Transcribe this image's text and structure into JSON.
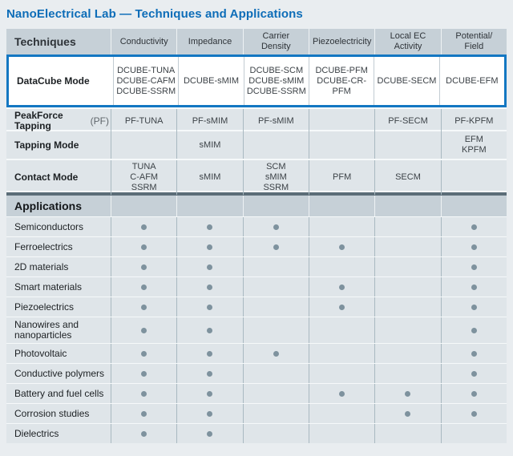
{
  "page": {
    "title": "NanoElectrical Lab — Techniques and Applications"
  },
  "colors": {
    "accent_blue": "#0d6db8",
    "highlight_border": "#1377c2",
    "header_bg": "#c6d0d7",
    "row_bg": "#dfe5e9",
    "dark_divider": "#5c6d78",
    "dot_color": "#7e929e",
    "page_bg": "#e9edf0"
  },
  "table": {
    "techniques_header": "Techniques",
    "applications_header": "Applications",
    "columns": [
      "Conductivity",
      "Impedance",
      "Carrier\nDensity",
      "Piezoelectricity",
      "Local EC\nActivity",
      "Potential/\nField"
    ],
    "technique_rows": [
      {
        "label": "DataCube Mode",
        "suffix": "",
        "highlighted": true,
        "cells": [
          "DCUBE-TUNA\nDCUBE-CAFM\nDCUBE-SSRM",
          "DCUBE-sMIM",
          "DCUBE-SCM\nDCUBE-sMIM\nDCUBE-SSRM",
          "DCUBE-PFM\nDCUBE-CR-PFM",
          "DCUBE-SECM",
          "DCUBE-EFM"
        ]
      },
      {
        "label": "PeakForce Tapping",
        "suffix": "(PF)",
        "highlighted": false,
        "cells": [
          "PF-TUNA",
          "PF-sMIM",
          "PF-sMIM",
          "",
          "PF-SECM",
          "PF-KPFM"
        ]
      },
      {
        "label": "Tapping Mode",
        "suffix": "",
        "highlighted": false,
        "cells": [
          "",
          "sMIM",
          "",
          "",
          "",
          "EFM\nKPFM"
        ]
      },
      {
        "label": "Contact Mode",
        "suffix": "",
        "highlighted": false,
        "cells": [
          "TUNA\nC-AFM\nSSRM",
          "sMIM",
          "SCM\nsMIM\nSSRM",
          "PFM",
          "SECM",
          ""
        ]
      }
    ],
    "application_rows": [
      {
        "label": "Semiconductors",
        "dots": [
          1,
          1,
          1,
          0,
          0,
          1
        ]
      },
      {
        "label": "Ferroelectrics",
        "dots": [
          1,
          1,
          1,
          1,
          0,
          1
        ]
      },
      {
        "label": "2D materials",
        "dots": [
          1,
          1,
          0,
          0,
          0,
          1
        ]
      },
      {
        "label": "Smart materials",
        "dots": [
          1,
          1,
          0,
          1,
          0,
          1
        ]
      },
      {
        "label": "Piezoelectrics",
        "dots": [
          1,
          1,
          0,
          1,
          0,
          1
        ]
      },
      {
        "label": "Nanowires and nanoparticles",
        "dots": [
          1,
          1,
          0,
          0,
          0,
          1
        ]
      },
      {
        "label": "Photovoltaic",
        "dots": [
          1,
          1,
          1,
          0,
          0,
          1
        ]
      },
      {
        "label": "Conductive polymers",
        "dots": [
          1,
          1,
          0,
          0,
          0,
          1
        ]
      },
      {
        "label": "Battery and fuel cells",
        "dots": [
          1,
          1,
          0,
          1,
          1,
          1
        ]
      },
      {
        "label": "Corrosion studies",
        "dots": [
          1,
          1,
          0,
          0,
          1,
          1
        ]
      },
      {
        "label": "Dielectrics",
        "dots": [
          1,
          1,
          0,
          0,
          0,
          0
        ]
      }
    ]
  }
}
